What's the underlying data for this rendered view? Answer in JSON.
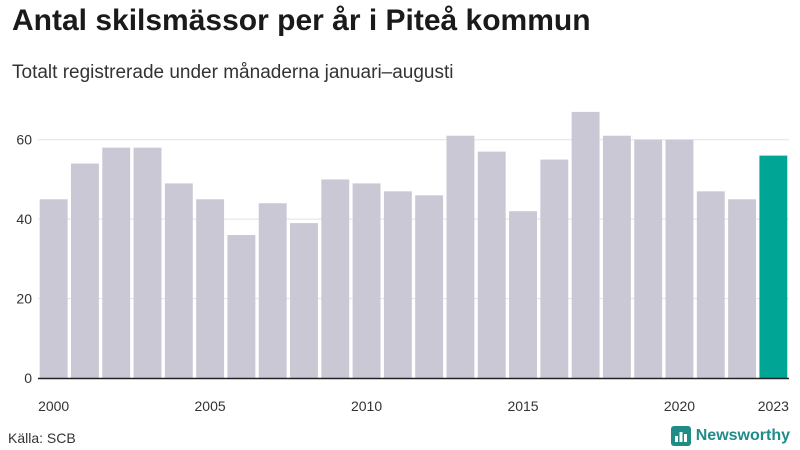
{
  "chart_data": {
    "type": "bar",
    "title": "Antal skilsmässor per år i Piteå kommun",
    "subtitle": "Totalt registrerade under månaderna januari–augusti",
    "xlabel": "",
    "ylabel": "",
    "categories": [
      "2000",
      "2001",
      "2002",
      "2003",
      "2004",
      "2005",
      "2006",
      "2007",
      "2008",
      "2009",
      "2010",
      "2011",
      "2012",
      "2013",
      "2014",
      "2015",
      "2016",
      "2017",
      "2018",
      "2019",
      "2020",
      "2021",
      "2022",
      "2023"
    ],
    "values": [
      45,
      54,
      58,
      58,
      49,
      45,
      36,
      44,
      39,
      50,
      49,
      47,
      46,
      61,
      57,
      42,
      55,
      67,
      61,
      60,
      60,
      47,
      45,
      56
    ],
    "ylim": [
      0,
      70
    ],
    "yticks": [
      0,
      20,
      40,
      60
    ],
    "xtick_labels": [
      "2000",
      "2005",
      "2010",
      "2015",
      "2020",
      "2023"
    ],
    "highlight_category": "2023",
    "colors": {
      "bar": "#c9c8d4",
      "highlight": "#00a596",
      "grid": "#e2e2e2",
      "axis": "#222222"
    },
    "grid": true
  },
  "footer": {
    "source": "Källa: SCB",
    "brand": "Newsworthy",
    "brand_icon": "bar-chart-logo-icon"
  }
}
